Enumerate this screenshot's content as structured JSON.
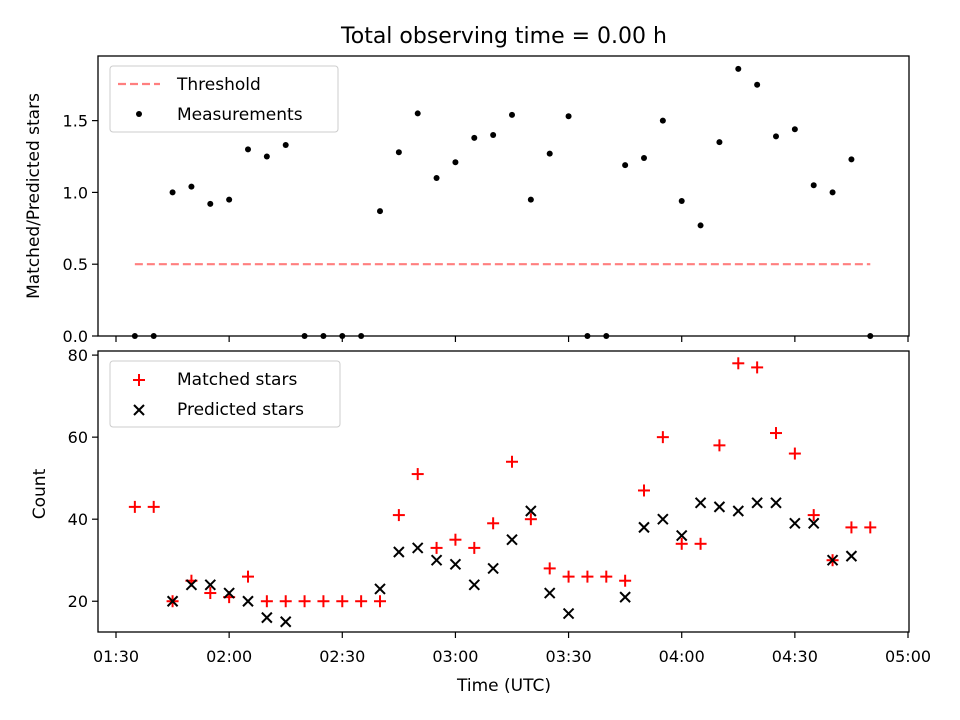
{
  "chart_data": [
    {
      "type": "scatter",
      "title": "Total observing time = 0.00 h",
      "xlabel": "",
      "ylabel": "Matched/Predicted stars",
      "xlim": [
        "01:26",
        "05:00"
      ],
      "ylim": [
        0,
        1.95
      ],
      "yticks": [
        "0.0",
        "0.5",
        "1.0",
        "1.5"
      ],
      "legend_position": "upper-left",
      "series": [
        {
          "name": "Threshold",
          "style": "dashed-line",
          "color": "#ff7f7f",
          "x": [
            "01:35",
            "04:50"
          ],
          "y": [
            0.5,
            0.5
          ]
        },
        {
          "name": "Measurements",
          "style": "dot",
          "color": "#000000",
          "x": [
            "01:35",
            "01:40",
            "01:45",
            "01:50",
            "01:55",
            "02:00",
            "02:05",
            "02:10",
            "02:15",
            "02:20",
            "02:25",
            "02:30",
            "02:35",
            "02:40",
            "02:45",
            "02:50",
            "02:55",
            "03:00",
            "03:05",
            "03:10",
            "03:15",
            "03:20",
            "03:25",
            "03:30",
            "03:35",
            "03:40",
            "03:45",
            "03:50",
            "03:55",
            "04:00",
            "04:05",
            "04:10",
            "04:15",
            "04:20",
            "04:25",
            "04:30",
            "04:35",
            "04:40",
            "04:45",
            "04:50"
          ],
          "y": [
            0.0,
            0.0,
            1.0,
            1.04,
            0.92,
            0.95,
            1.3,
            1.25,
            1.33,
            0.0,
            0.0,
            0.0,
            0.0,
            0.87,
            1.28,
            1.55,
            1.1,
            1.21,
            1.38,
            1.4,
            1.54,
            0.95,
            1.27,
            1.53,
            0.0,
            0.0,
            1.19,
            1.24,
            1.5,
            0.94,
            0.77,
            1.35,
            1.86,
            1.75,
            1.39,
            1.44,
            1.05,
            1.0,
            1.23,
            0.0
          ]
        }
      ]
    },
    {
      "type": "scatter",
      "title": "",
      "xlabel": "Time (UTC)",
      "ylabel": "Count",
      "xlim": [
        "01:26",
        "05:00"
      ],
      "ylim": [
        12.5,
        81
      ],
      "yticks": [
        "20",
        "40",
        "60",
        "80"
      ],
      "xticks": [
        "01:30",
        "02:00",
        "02:30",
        "03:00",
        "03:30",
        "04:00",
        "04:30",
        "05:00"
      ],
      "legend_position": "upper-left",
      "series": [
        {
          "name": "Matched stars",
          "style": "plus",
          "color": "#ff0000",
          "x": [
            "01:35",
            "01:40",
            "01:45",
            "01:50",
            "01:55",
            "02:00",
            "02:05",
            "02:10",
            "02:15",
            "02:20",
            "02:25",
            "02:30",
            "02:35",
            "02:40",
            "02:45",
            "02:50",
            "02:55",
            "03:00",
            "03:05",
            "03:10",
            "03:15",
            "03:20",
            "03:25",
            "03:30",
            "03:35",
            "03:40",
            "03:45",
            "03:50",
            "03:55",
            "04:00",
            "04:05",
            "04:10",
            "04:15",
            "04:20",
            "04:25",
            "04:30",
            "04:35",
            "04:40",
            "04:45",
            "04:50"
          ],
          "y": [
            43,
            43,
            20,
            25,
            22,
            21,
            26,
            20,
            20,
            20,
            20,
            20,
            20,
            20,
            41,
            51,
            33,
            35,
            33,
            39,
            54,
            40,
            28,
            26,
            26,
            26,
            25,
            47,
            60,
            34,
            34,
            58,
            78,
            77,
            61,
            56,
            41,
            30,
            38,
            38
          ]
        },
        {
          "name": "Predicted stars",
          "style": "x",
          "color": "#000000",
          "x": [
            "01:45",
            "01:50",
            "01:55",
            "02:00",
            "02:05",
            "02:10",
            "02:15",
            "02:40",
            "02:45",
            "02:50",
            "02:55",
            "03:00",
            "03:05",
            "03:10",
            "03:15",
            "03:20",
            "03:25",
            "03:30",
            "03:45",
            "03:50",
            "03:55",
            "04:00",
            "04:05",
            "04:10",
            "04:15",
            "04:20",
            "04:25",
            "04:30",
            "04:35",
            "04:40",
            "04:45"
          ],
          "y": [
            20,
            24,
            24,
            22,
            20,
            16,
            15,
            23,
            32,
            33,
            30,
            29,
            24,
            28,
            35,
            42,
            22,
            17,
            21,
            38,
            40,
            36,
            44,
            43,
            42,
            44,
            44,
            39,
            39,
            30,
            31
          ]
        }
      ]
    }
  ]
}
